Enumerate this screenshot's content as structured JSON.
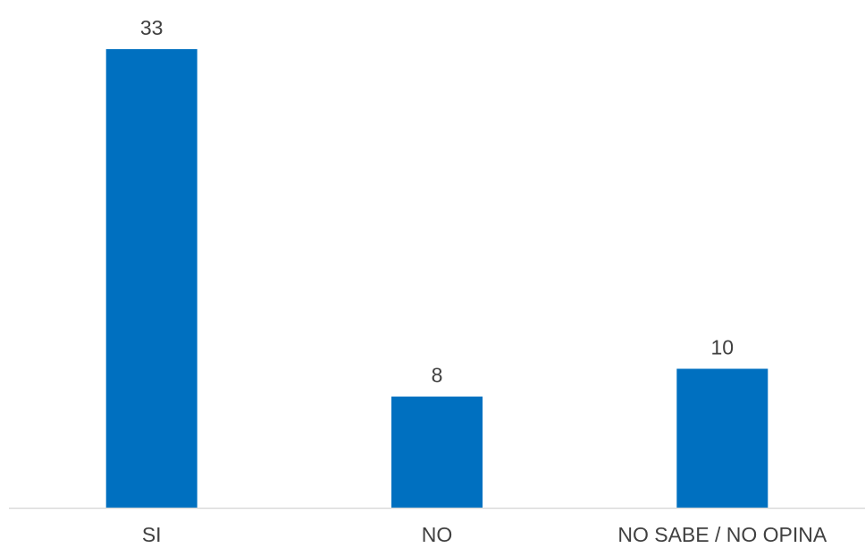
{
  "chart_data": {
    "type": "bar",
    "categories": [
      "SI",
      "NO",
      "NO SABE / NO OPINA"
    ],
    "values": [
      33,
      8,
      10
    ],
    "title": "",
    "xlabel": "",
    "ylabel": "",
    "ylim": [
      0,
      33
    ],
    "grid": false,
    "legend": "none",
    "data_labels": true,
    "colors": {
      "bar": "#0070C0",
      "axis": "#D9D9D9",
      "text": "#404040"
    }
  }
}
